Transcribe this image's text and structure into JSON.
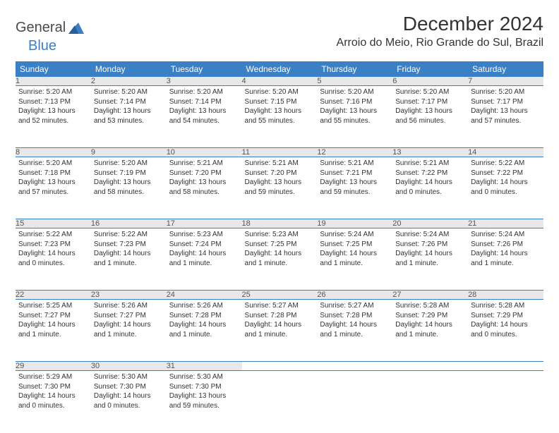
{
  "brand": {
    "part1": "General",
    "part2": "Blue"
  },
  "title": "December 2024",
  "location": "Arroio do Meio, Rio Grande do Sul, Brazil",
  "header_bg": "#3b7fc4",
  "day_headers": [
    "Sunday",
    "Monday",
    "Tuesday",
    "Wednesday",
    "Thursday",
    "Friday",
    "Saturday"
  ],
  "weeks": [
    [
      {
        "n": "1",
        "sunrise": "5:20 AM",
        "sunset": "7:13 PM",
        "daylight": "13 hours and 52 minutes."
      },
      {
        "n": "2",
        "sunrise": "5:20 AM",
        "sunset": "7:14 PM",
        "daylight": "13 hours and 53 minutes."
      },
      {
        "n": "3",
        "sunrise": "5:20 AM",
        "sunset": "7:14 PM",
        "daylight": "13 hours and 54 minutes."
      },
      {
        "n": "4",
        "sunrise": "5:20 AM",
        "sunset": "7:15 PM",
        "daylight": "13 hours and 55 minutes."
      },
      {
        "n": "5",
        "sunrise": "5:20 AM",
        "sunset": "7:16 PM",
        "daylight": "13 hours and 55 minutes."
      },
      {
        "n": "6",
        "sunrise": "5:20 AM",
        "sunset": "7:17 PM",
        "daylight": "13 hours and 56 minutes."
      },
      {
        "n": "7",
        "sunrise": "5:20 AM",
        "sunset": "7:17 PM",
        "daylight": "13 hours and 57 minutes."
      }
    ],
    [
      {
        "n": "8",
        "sunrise": "5:20 AM",
        "sunset": "7:18 PM",
        "daylight": "13 hours and 57 minutes."
      },
      {
        "n": "9",
        "sunrise": "5:20 AM",
        "sunset": "7:19 PM",
        "daylight": "13 hours and 58 minutes."
      },
      {
        "n": "10",
        "sunrise": "5:21 AM",
        "sunset": "7:20 PM",
        "daylight": "13 hours and 58 minutes."
      },
      {
        "n": "11",
        "sunrise": "5:21 AM",
        "sunset": "7:20 PM",
        "daylight": "13 hours and 59 minutes."
      },
      {
        "n": "12",
        "sunrise": "5:21 AM",
        "sunset": "7:21 PM",
        "daylight": "13 hours and 59 minutes."
      },
      {
        "n": "13",
        "sunrise": "5:21 AM",
        "sunset": "7:22 PM",
        "daylight": "14 hours and 0 minutes."
      },
      {
        "n": "14",
        "sunrise": "5:22 AM",
        "sunset": "7:22 PM",
        "daylight": "14 hours and 0 minutes."
      }
    ],
    [
      {
        "n": "15",
        "sunrise": "5:22 AM",
        "sunset": "7:23 PM",
        "daylight": "14 hours and 0 minutes."
      },
      {
        "n": "16",
        "sunrise": "5:22 AM",
        "sunset": "7:23 PM",
        "daylight": "14 hours and 1 minute."
      },
      {
        "n": "17",
        "sunrise": "5:23 AM",
        "sunset": "7:24 PM",
        "daylight": "14 hours and 1 minute."
      },
      {
        "n": "18",
        "sunrise": "5:23 AM",
        "sunset": "7:25 PM",
        "daylight": "14 hours and 1 minute."
      },
      {
        "n": "19",
        "sunrise": "5:24 AM",
        "sunset": "7:25 PM",
        "daylight": "14 hours and 1 minute."
      },
      {
        "n": "20",
        "sunrise": "5:24 AM",
        "sunset": "7:26 PM",
        "daylight": "14 hours and 1 minute."
      },
      {
        "n": "21",
        "sunrise": "5:24 AM",
        "sunset": "7:26 PM",
        "daylight": "14 hours and 1 minute."
      }
    ],
    [
      {
        "n": "22",
        "sunrise": "5:25 AM",
        "sunset": "7:27 PM",
        "daylight": "14 hours and 1 minute."
      },
      {
        "n": "23",
        "sunrise": "5:26 AM",
        "sunset": "7:27 PM",
        "daylight": "14 hours and 1 minute."
      },
      {
        "n": "24",
        "sunrise": "5:26 AM",
        "sunset": "7:28 PM",
        "daylight": "14 hours and 1 minute."
      },
      {
        "n": "25",
        "sunrise": "5:27 AM",
        "sunset": "7:28 PM",
        "daylight": "14 hours and 1 minute."
      },
      {
        "n": "26",
        "sunrise": "5:27 AM",
        "sunset": "7:28 PM",
        "daylight": "14 hours and 1 minute."
      },
      {
        "n": "27",
        "sunrise": "5:28 AM",
        "sunset": "7:29 PM",
        "daylight": "14 hours and 1 minute."
      },
      {
        "n": "28",
        "sunrise": "5:28 AM",
        "sunset": "7:29 PM",
        "daylight": "14 hours and 0 minutes."
      }
    ],
    [
      {
        "n": "29",
        "sunrise": "5:29 AM",
        "sunset": "7:30 PM",
        "daylight": "14 hours and 0 minutes."
      },
      {
        "n": "30",
        "sunrise": "5:30 AM",
        "sunset": "7:30 PM",
        "daylight": "14 hours and 0 minutes."
      },
      {
        "n": "31",
        "sunrise": "5:30 AM",
        "sunset": "7:30 PM",
        "daylight": "13 hours and 59 minutes."
      },
      null,
      null,
      null,
      null
    ]
  ],
  "labels": {
    "sunrise": "Sunrise:",
    "sunset": "Sunset:",
    "daylight": "Daylight:"
  }
}
